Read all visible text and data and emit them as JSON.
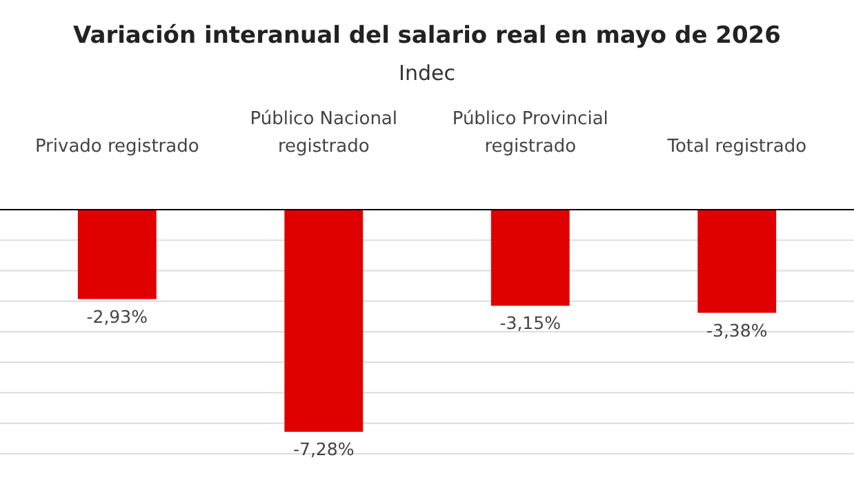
{
  "chart_data": {
    "type": "bar",
    "title": "Variación interanual del salario real en mayo de 2026",
    "subtitle": "Indec",
    "categories": [
      "Privado registrado",
      "Público Nacional registrado",
      "Público Provincial registrado",
      "Total registrado"
    ],
    "values": [
      -2.93,
      -7.28,
      -3.15,
      -3.38
    ],
    "value_labels": [
      "-2,93%",
      "-7,28%",
      "-3,15%",
      "-3,38%"
    ],
    "color": "#e00000",
    "ylim": [
      -8,
      0
    ],
    "yticks": [
      {
        "value": 0,
        "label": null
      },
      {
        "value": -1,
        "label": null
      },
      {
        "value": -2,
        "label": null
      },
      {
        "value": -3,
        "label": null
      },
      {
        "value": -4,
        "label": null
      },
      {
        "value": -5,
        "label": null
      },
      {
        "value": -6,
        "label": null
      },
      {
        "value": -7,
        "label": null
      },
      {
        "value": -8,
        "label": null
      }
    ],
    "grid": "y",
    "tick_labels": "x"
  }
}
